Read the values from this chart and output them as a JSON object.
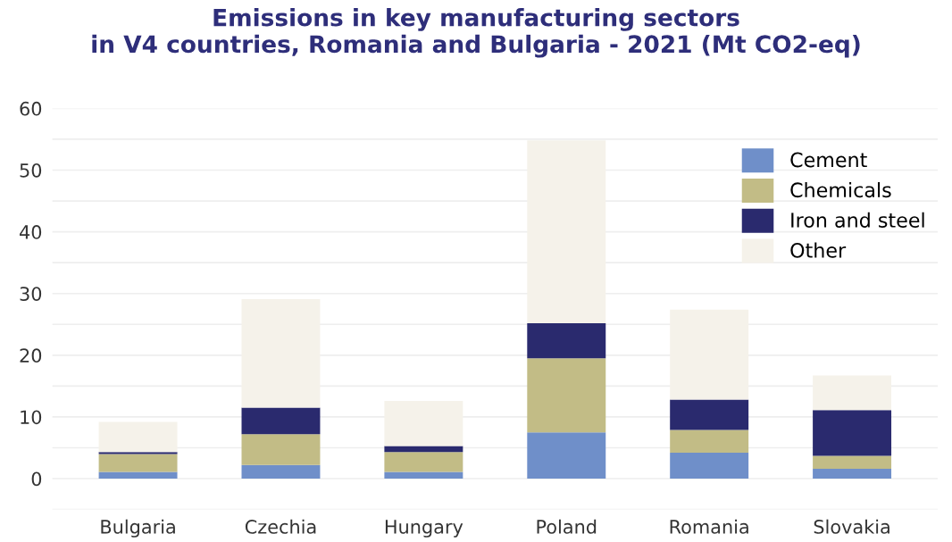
{
  "chart_data": {
    "type": "bar",
    "stacked": true,
    "title": "Emissions in key manufacturing sectors\nin V4 countries, Romania and Bulgaria - 2021 (Mt CO2-eq)",
    "categories": [
      "Bulgaria",
      "Czechia",
      "Hungary",
      "Poland",
      "Romania",
      "Slovakia"
    ],
    "series": [
      {
        "name": "Cement",
        "color": "#6f8fc9",
        "values": [
          1.1,
          2.2,
          1.1,
          7.5,
          4.2,
          1.6
        ]
      },
      {
        "name": "Chemicals",
        "color": "#c2bc86",
        "values": [
          2.9,
          5.0,
          3.2,
          12.0,
          3.7,
          2.1
        ]
      },
      {
        "name": "Iron and steel",
        "color": "#2a2a6e",
        "values": [
          0.3,
          4.3,
          1.0,
          5.7,
          4.9,
          7.4
        ]
      },
      {
        "name": "Other",
        "color": "#f5f2ea",
        "values": [
          4.9,
          17.6,
          7.3,
          29.6,
          14.6,
          5.6
        ]
      }
    ],
    "ylim": [
      -5,
      60
    ],
    "yticks": [
      {
        "value": -5,
        "label": null
      },
      0,
      {
        "value": 5,
        "label": null
      },
      10,
      {
        "value": 15,
        "label": null
      },
      20,
      {
        "value": 25,
        "label": null
      },
      30,
      {
        "value": 35,
        "label": null
      },
      40,
      {
        "value": 45,
        "label": null
      },
      50,
      {
        "value": 55,
        "label": null
      },
      60
    ],
    "grid": "y",
    "legend": "top right"
  }
}
